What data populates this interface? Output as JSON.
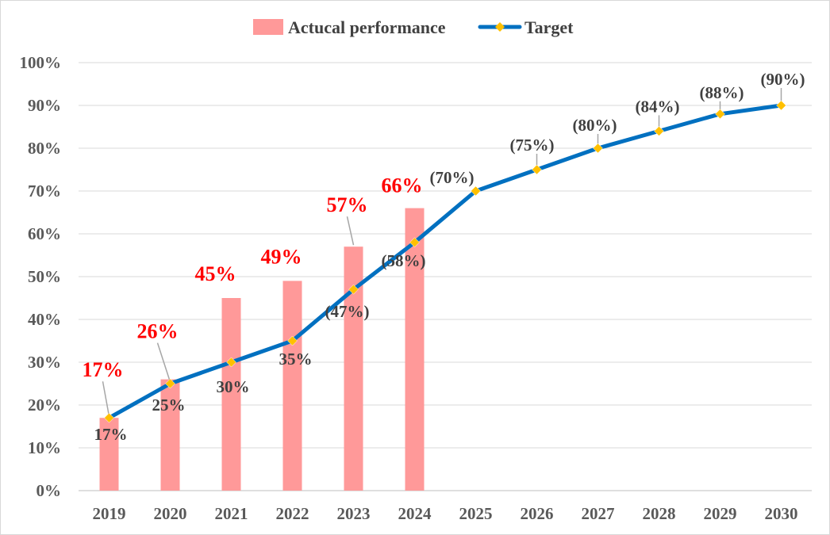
{
  "chart_data": {
    "type": "bar",
    "categories": [
      "2019",
      "2020",
      "2021",
      "2022",
      "2023",
      "2024",
      "2025",
      "2026",
      "2027",
      "2028",
      "2029",
      "2030"
    ],
    "series": [
      {
        "name": "Actucal performance",
        "kind": "bar",
        "color": "#ff9999",
        "values": [
          17,
          26,
          45,
          49,
          57,
          66,
          null,
          null,
          null,
          null,
          null,
          null
        ],
        "labels": [
          "17%",
          "26%",
          "45%",
          "49%",
          "57%",
          "66%",
          "",
          "",
          "",
          "",
          "",
          ""
        ],
        "label_color": "#ff0000"
      },
      {
        "name": "Target",
        "kind": "line",
        "color": "#0070c0",
        "marker": "diamond",
        "marker_color": "#ffc000",
        "values": [
          17,
          25,
          30,
          35,
          47,
          58,
          70,
          75,
          80,
          84,
          88,
          90
        ],
        "labels": [
          "17%",
          "25%",
          "30%",
          "35%",
          "(47%)",
          "(58%)",
          "(70%)",
          "(75%)",
          "(80%)",
          "(84%)",
          "(88%)",
          "(90%)"
        ]
      }
    ],
    "yticks": [
      "0%",
      "10%",
      "20%",
      "30%",
      "40%",
      "50%",
      "60%",
      "70%",
      "80%",
      "90%",
      "100%"
    ],
    "ylim": [
      0,
      100
    ],
    "grid": true,
    "legend_position": "top",
    "title": "",
    "xlabel": "",
    "ylabel": ""
  }
}
